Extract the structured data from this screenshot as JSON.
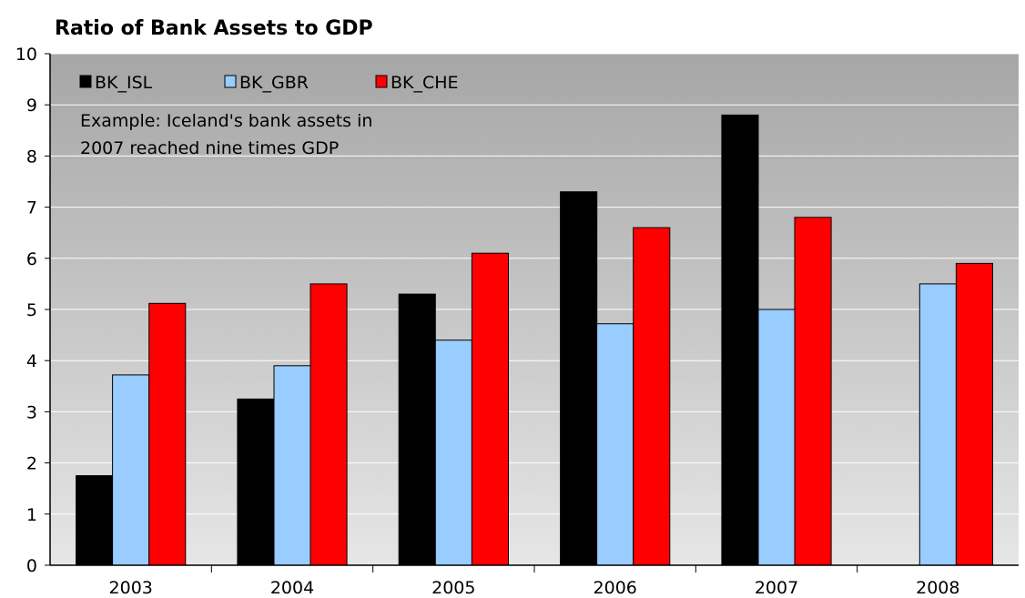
{
  "chart_data": {
    "type": "bar",
    "title": "Ratio of Bank Assets to GDP",
    "xlabel": "",
    "ylabel": "",
    "categories": [
      "2003",
      "2004",
      "2005",
      "2006",
      "2007",
      "2008"
    ],
    "series": [
      {
        "name": "BK_ISL",
        "values": [
          1.75,
          3.25,
          5.3,
          7.3,
          8.8,
          null
        ],
        "color": "#000000"
      },
      {
        "name": "BK_GBR",
        "values": [
          3.72,
          3.9,
          4.4,
          4.72,
          5.0,
          5.5
        ],
        "color": "#99ccff"
      },
      {
        "name": "BK_CHE",
        "values": [
          5.12,
          5.5,
          6.1,
          6.6,
          6.8,
          5.9
        ],
        "color": "#ff0000"
      }
    ],
    "ylim": [
      0,
      10
    ],
    "yticks": [
      0,
      1,
      2,
      3,
      4,
      5,
      6,
      7,
      8,
      9,
      10
    ],
    "grid": true,
    "legend_position": "top-left",
    "annotation": {
      "lines": [
        "Example: Iceland's bank assets in",
        "2007 reached nine times GDP"
      ]
    },
    "background_gradient": [
      "#a6a6a6",
      "#e6e6e6"
    ]
  }
}
